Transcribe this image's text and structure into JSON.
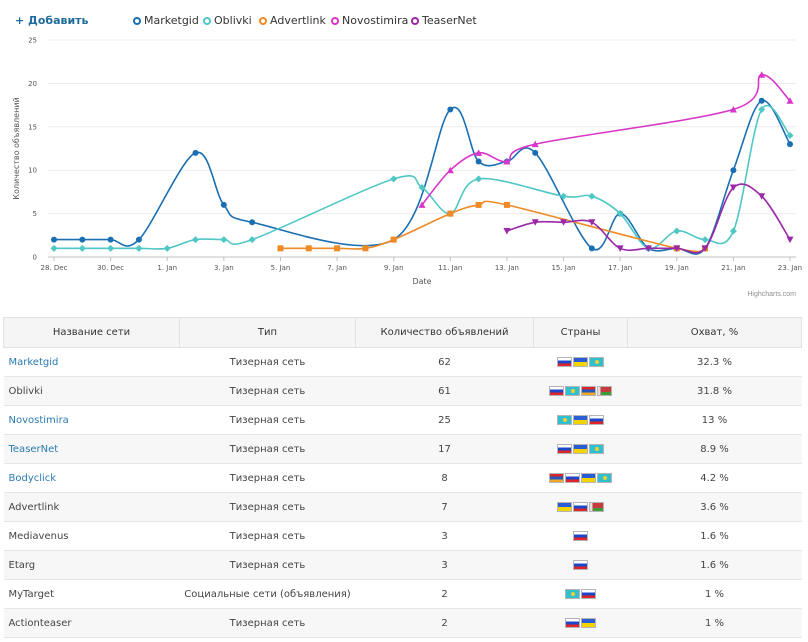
{
  "legend": {
    "add_label": "+ Добавить",
    "series": [
      {
        "name": "Marketgid",
        "color": "#1a6fb3"
      },
      {
        "name": "Oblivki",
        "color": "#4ec7c5"
      },
      {
        "name": "Advertlink",
        "color": "#ef8a26"
      },
      {
        "name": "Novostimira",
        "color": "#d935c8"
      },
      {
        "name": "TeaserNet",
        "color": "#9b28a8"
      }
    ]
  },
  "chart_data": {
    "type": "line",
    "xlabel": "Date",
    "ylabel": "Количество объявлений",
    "ylim": [
      0,
      25
    ],
    "yticks": [
      0,
      5,
      10,
      15,
      20,
      25
    ],
    "xlim": [
      "2023-12-28",
      "2024-01-23"
    ],
    "xticks": [
      {
        "date": "2023-12-28",
        "label": "28. Dec"
      },
      {
        "date": "2023-12-30",
        "label": "30. Dec"
      },
      {
        "date": "2024-01-01",
        "label": "1. Jan"
      },
      {
        "date": "2024-01-03",
        "label": "3. Jan"
      },
      {
        "date": "2024-01-05",
        "label": "5. Jan"
      },
      {
        "date": "2024-01-07",
        "label": "7. Jan"
      },
      {
        "date": "2024-01-09",
        "label": "9. Jan"
      },
      {
        "date": "2024-01-11",
        "label": "11. Jan"
      },
      {
        "date": "2024-01-13",
        "label": "13. Jan"
      },
      {
        "date": "2024-01-15",
        "label": "15. Jan"
      },
      {
        "date": "2024-01-17",
        "label": "17. Jan"
      },
      {
        "date": "2024-01-19",
        "label": "19. Jan"
      },
      {
        "date": "2024-01-21",
        "label": "21. Jan"
      },
      {
        "date": "2024-01-23",
        "label": "23. Jan"
      }
    ],
    "grid": "horizontal",
    "series": [
      {
        "name": "Marketgid",
        "color": "#1a6fb3",
        "marker": "circle",
        "points": [
          [
            "2023-12-28",
            2
          ],
          [
            "2023-12-29",
            2
          ],
          [
            "2023-12-30",
            2
          ],
          [
            "2023-12-31",
            2
          ],
          [
            "2024-01-02",
            12
          ],
          [
            "2024-01-03",
            6
          ],
          [
            "2024-01-04",
            4
          ],
          [
            "2024-01-09",
            2
          ],
          [
            "2024-01-11",
            17
          ],
          [
            "2024-01-12",
            11
          ],
          [
            "2024-01-13",
            11
          ],
          [
            "2024-01-14",
            12
          ],
          [
            "2024-01-16",
            1
          ],
          [
            "2024-01-17",
            5
          ],
          [
            "2024-01-18",
            1
          ],
          [
            "2024-01-19",
            1
          ],
          [
            "2024-01-20",
            1
          ],
          [
            "2024-01-21",
            10
          ],
          [
            "2024-01-22",
            18
          ],
          [
            "2024-01-23",
            13
          ]
        ]
      },
      {
        "name": "Oblivki",
        "color": "#4ec7c5",
        "marker": "diamond",
        "points": [
          [
            "2023-12-28",
            1
          ],
          [
            "2023-12-29",
            1
          ],
          [
            "2023-12-30",
            1
          ],
          [
            "2023-12-31",
            1
          ],
          [
            "2024-01-01",
            1
          ],
          [
            "2024-01-02",
            2
          ],
          [
            "2024-01-03",
            2
          ],
          [
            "2024-01-04",
            2
          ],
          [
            "2024-01-09",
            9
          ],
          [
            "2024-01-10",
            8
          ],
          [
            "2024-01-11",
            5
          ],
          [
            "2024-01-12",
            9
          ],
          [
            "2024-01-15",
            7
          ],
          [
            "2024-01-16",
            7
          ],
          [
            "2024-01-17",
            5
          ],
          [
            "2024-01-18",
            1
          ],
          [
            "2024-01-19",
            3
          ],
          [
            "2024-01-20",
            2
          ],
          [
            "2024-01-21",
            3
          ],
          [
            "2024-01-22",
            17
          ],
          [
            "2024-01-23",
            14
          ]
        ]
      },
      {
        "name": "Advertlink",
        "color": "#ef8a26",
        "marker": "square",
        "points": [
          [
            "2024-01-05",
            1
          ],
          [
            "2024-01-06",
            1
          ],
          [
            "2024-01-07",
            1
          ],
          [
            "2024-01-08",
            1
          ],
          [
            "2024-01-09",
            2
          ],
          [
            "2024-01-11",
            5
          ],
          [
            "2024-01-12",
            6
          ],
          [
            "2024-01-13",
            6
          ],
          [
            "2024-01-19",
            1
          ],
          [
            "2024-01-20",
            1
          ]
        ]
      },
      {
        "name": "Novostimira",
        "color": "#d935c8",
        "marker": "triangle",
        "points": [
          [
            "2024-01-10",
            6
          ],
          [
            "2024-01-11",
            10
          ],
          [
            "2024-01-12",
            12
          ],
          [
            "2024-01-13",
            11
          ],
          [
            "2024-01-14",
            13
          ],
          [
            "2024-01-21",
            17
          ],
          [
            "2024-01-22",
            21
          ],
          [
            "2024-01-23",
            18
          ]
        ]
      },
      {
        "name": "TeaserNet",
        "color": "#9b28a8",
        "marker": "triangle-down",
        "points": [
          [
            "2024-01-13",
            3
          ],
          [
            "2024-01-14",
            4
          ],
          [
            "2024-01-15",
            4
          ],
          [
            "2024-01-16",
            4
          ],
          [
            "2024-01-17",
            1
          ],
          [
            "2024-01-18",
            1
          ],
          [
            "2024-01-19",
            1
          ],
          [
            "2024-01-20",
            1
          ],
          [
            "2024-01-21",
            8
          ],
          [
            "2024-01-22",
            7
          ],
          [
            "2024-01-23",
            2
          ]
        ]
      }
    ]
  },
  "credits": "Highcharts.com",
  "table": {
    "headers": [
      "Название сети",
      "Тип",
      "Количество объявлений",
      "Страны",
      "Охват, %"
    ],
    "rows": [
      {
        "network": "Marketgid",
        "link": true,
        "type": "Тизерная сеть",
        "count": "62",
        "flags": [
          "ru",
          "ua",
          "kz"
        ],
        "reach": "32.3 %"
      },
      {
        "network": "Oblivki",
        "link": false,
        "type": "Тизерная сеть",
        "count": "61",
        "flags": [
          "ru",
          "kz",
          "am",
          "by"
        ],
        "reach": "31.8 %"
      },
      {
        "network": "Novostimira",
        "link": true,
        "type": "Тизерная сеть",
        "count": "25",
        "flags": [
          "kz",
          "ua",
          "ru"
        ],
        "reach": "13 %"
      },
      {
        "network": "TeaserNet",
        "link": true,
        "type": "Тизерная сеть",
        "count": "17",
        "flags": [
          "ru",
          "ua",
          "kz"
        ],
        "reach": "8.9 %"
      },
      {
        "network": "Bodyclick",
        "link": true,
        "type": "Тизерная сеть",
        "count": "8",
        "flags": [
          "am",
          "ru",
          "ua",
          "kz"
        ],
        "reach": "4.2 %"
      },
      {
        "network": "Advertlink",
        "link": false,
        "type": "Тизерная сеть",
        "count": "7",
        "flags": [
          "ua",
          "ru",
          "by"
        ],
        "reach": "3.6 %"
      },
      {
        "network": "Mediavenus",
        "link": false,
        "type": "Тизерная сеть",
        "count": "3",
        "flags": [
          "ru"
        ],
        "reach": "1.6 %"
      },
      {
        "network": "Etarg",
        "link": false,
        "type": "Тизерная сеть",
        "count": "3",
        "flags": [
          "ru"
        ],
        "reach": "1.6 %"
      },
      {
        "network": "MyTarget",
        "link": false,
        "type": "Социальные сети (объявления)",
        "count": "2",
        "flags": [
          "kz",
          "ru"
        ],
        "reach": "1 %"
      },
      {
        "network": "Actionteaser",
        "link": false,
        "type": "Тизерная сеть",
        "count": "2",
        "flags": [
          "ru",
          "ua"
        ],
        "reach": "1 %"
      }
    ]
  }
}
